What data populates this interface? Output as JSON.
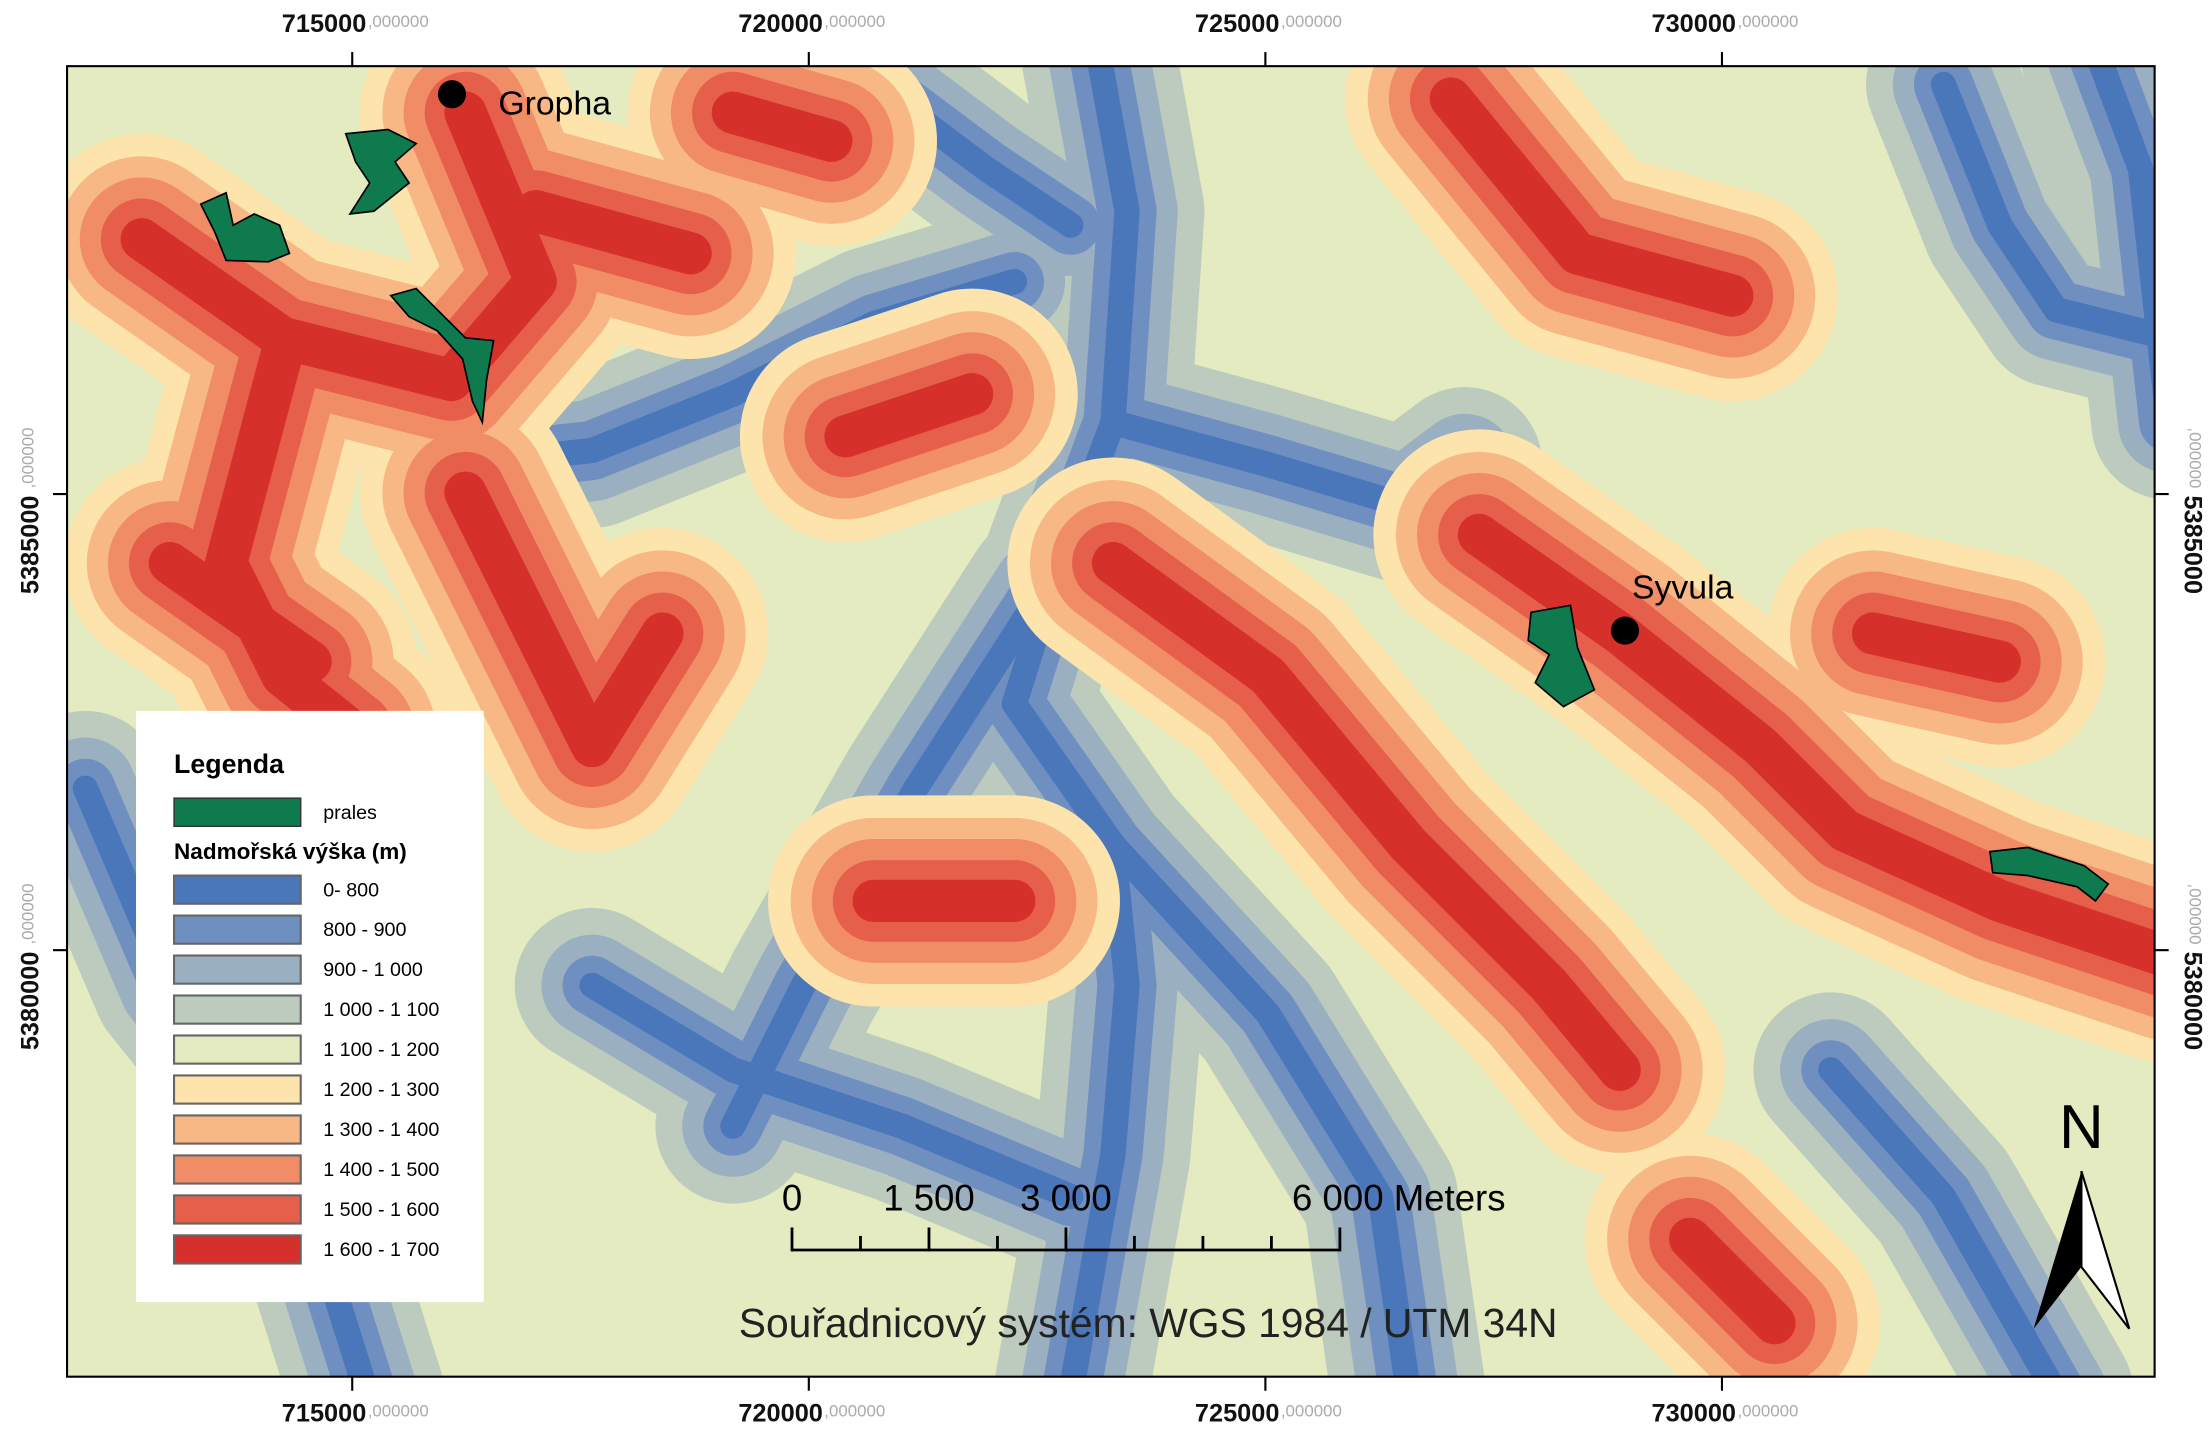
{
  "map": {
    "xlim": [
      711877,
      734738
    ],
    "ylim": [
      5375324,
      5389691
    ],
    "xticks": [
      {
        "value": 715000,
        "label": "715000",
        "decimals": ",000000"
      },
      {
        "value": 720000,
        "label": "720000",
        "decimals": ",000000"
      },
      {
        "value": 725000,
        "label": "725000",
        "decimals": ",000000"
      },
      {
        "value": 730000,
        "label": "730000",
        "decimals": ",000000"
      }
    ],
    "yticks": [
      {
        "value": 5385000,
        "label": "5385000",
        "decimals": ",000000"
      },
      {
        "value": 5380000,
        "label": "5380000",
        "decimals": ",000000"
      }
    ],
    "places": [
      {
        "name": "Gropha",
        "x": 716092,
        "y": 5389383
      },
      {
        "name": "Syvula",
        "x": 728938,
        "y": 5383503
      }
    ]
  },
  "legend": {
    "title": "Legenda",
    "forest": {
      "label": "prales",
      "color": "#0e7a4e"
    },
    "elevation_title": "Nadmořská výška (m)",
    "classes": [
      {
        "label": "0- 800",
        "color": "#4a77ba"
      },
      {
        "label": "800 - 900",
        "color": "#6e8fbf"
      },
      {
        "label": "900 - 1 000",
        "color": "#9aafc0"
      },
      {
        "label": "1 000 - 1 100",
        "color": "#bccbbd"
      },
      {
        "label": "1 100 - 1 200",
        "color": "#e5ebc0"
      },
      {
        "label": "1 200 - 1 300",
        "color": "#fde4ad"
      },
      {
        "label": "1 300 - 1 400",
        "color": "#f8b886"
      },
      {
        "label": "1 400 - 1 500",
        "color": "#f18d66"
      },
      {
        "label": "1 500 - 1 600",
        "color": "#e65f4b"
      },
      {
        "label": "1 600 - 1 700",
        "color": "#d6302a"
      }
    ]
  },
  "scale_bar": {
    "ticks": [
      {
        "value": 0,
        "label": "0"
      },
      {
        "value": 1500,
        "label": "1 500"
      },
      {
        "value": 3000,
        "label": "3 000"
      },
      {
        "value": 6000,
        "label": "6 000 Meters"
      }
    ],
    "minor_ticks": [
      750,
      2250,
      3750,
      4500,
      5250
    ]
  },
  "coordinate_system": "Souřadnicový systém: WGS 1984 / UTM 34N",
  "north": "N"
}
